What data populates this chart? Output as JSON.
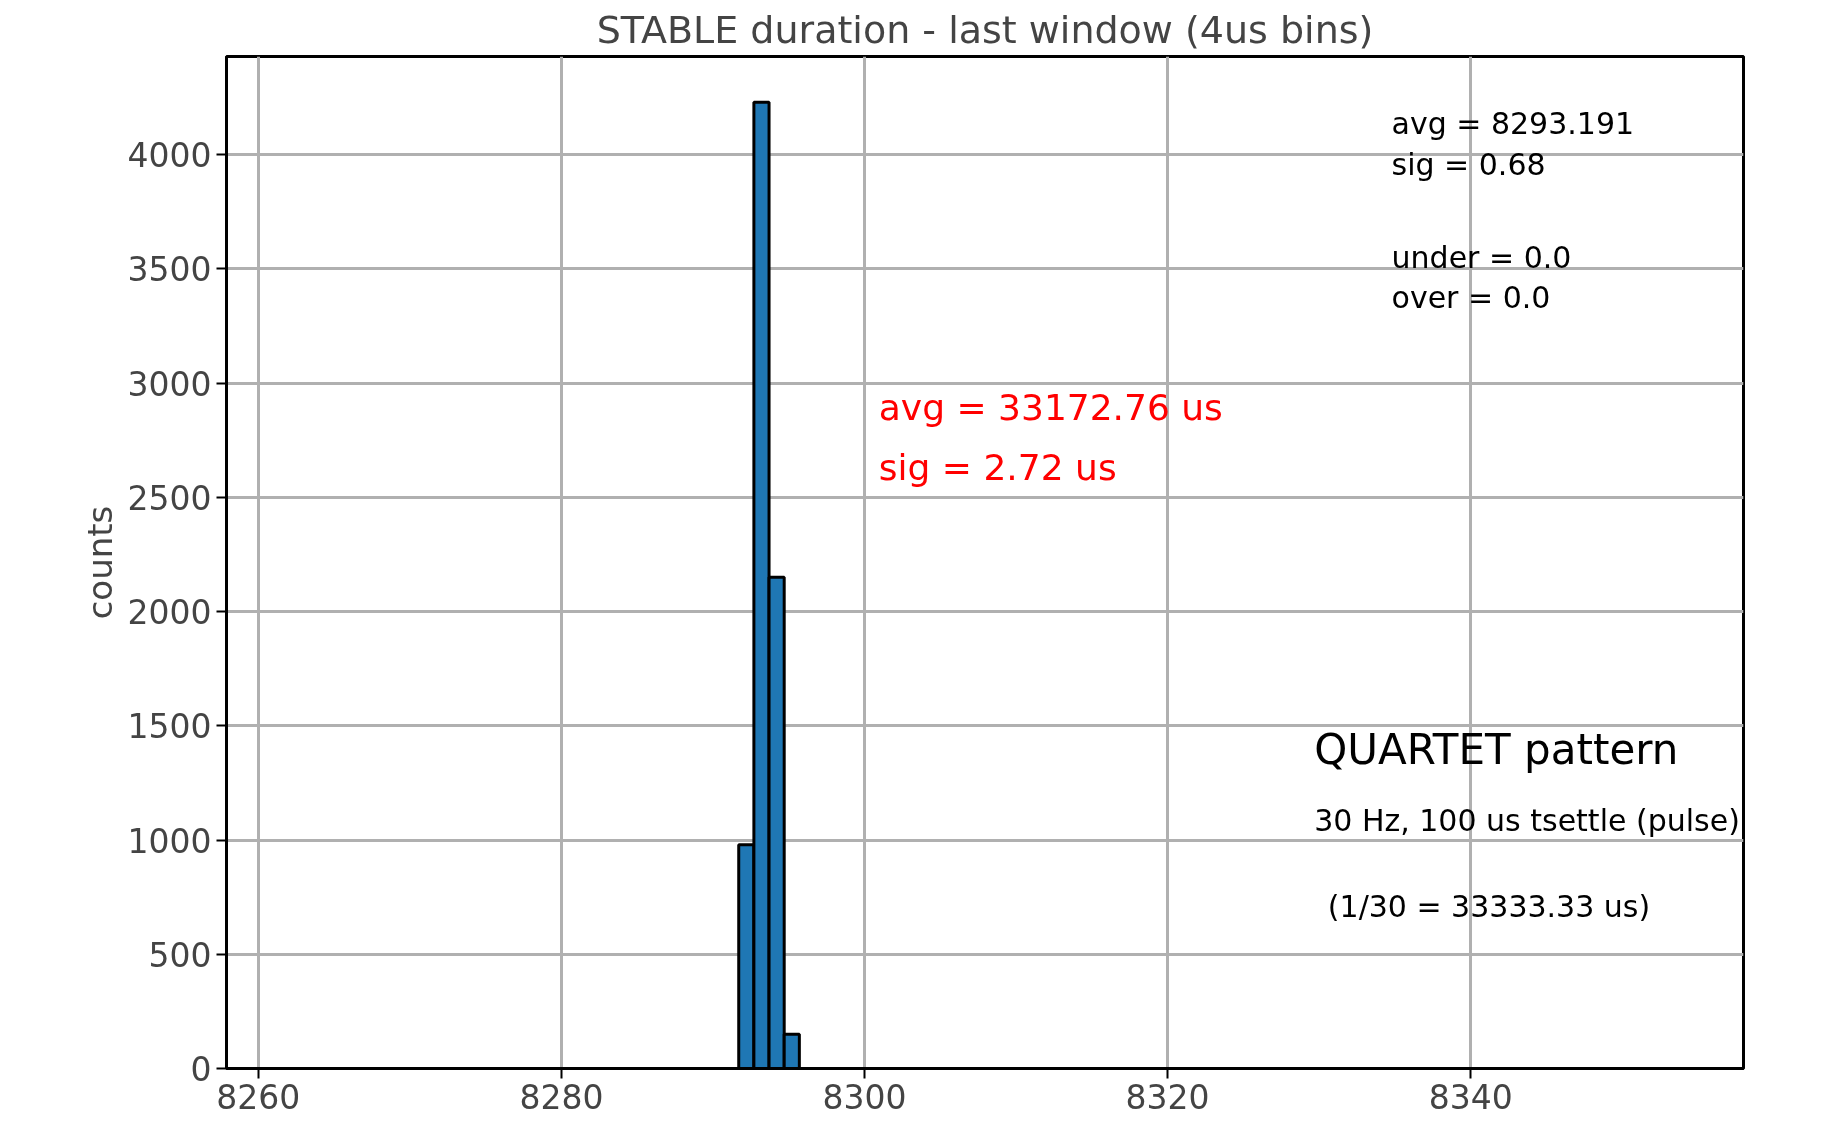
{
  "chart_data": {
    "type": "histogram",
    "title": "STABLE duration - last window (4us bins)",
    "ylabel": "counts",
    "bins": [
      8290.7,
      8291.7,
      8292.7,
      8293.7,
      8294.7,
      8295.7
    ],
    "values": [
      null,
      980,
      4230,
      2150,
      150
    ],
    "color": "#1f77b4",
    "xlim": [
      8257.9,
      8358
    ],
    "xticks": [
      8260,
      8280,
      8300,
      8320,
      8340
    ],
    "ylim": [
      0,
      4430
    ],
    "yticks": [
      0,
      500,
      1000,
      1500,
      2000,
      2500,
      3000,
      3500,
      4000
    ],
    "grid": true,
    "annotations": [
      "avg = 8293.191",
      "sig  = 0.68",
      "under = 0.0",
      "over   = 0.0",
      "avg = 33172.76 us",
      "sig  = 2.72 us",
      "QUARTET pattern",
      "30 Hz, 100 us tsettle (pulse)",
      "(1/30 = 33333.33 us)"
    ]
  }
}
